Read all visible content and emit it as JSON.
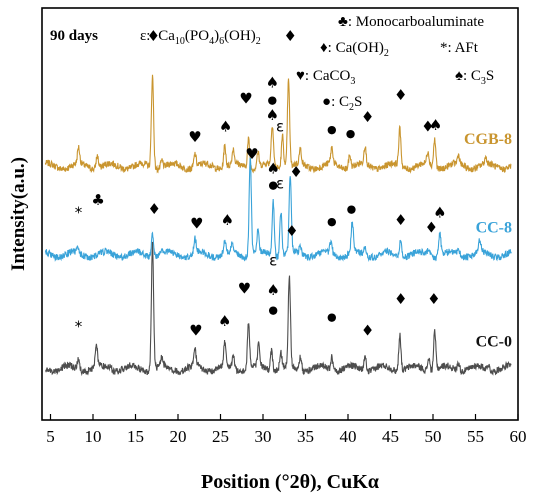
{
  "chart_data": {
    "type": "line",
    "title": "90 days",
    "xlabel": "Position (°2θ), CuKα",
    "ylabel": "Intensity(a.u.)",
    "xlim": [
      4,
      60
    ],
    "x_ticks": [
      "5",
      "10",
      "15",
      "20",
      "25",
      "30",
      "35",
      "40",
      "45",
      "50",
      "55",
      "60"
    ],
    "y_ticks_shown": false,
    "grid": false,
    "legend_placement": "top",
    "legend": {
      "epsilon": {
        "symbol": "ε:",
        "formula_parts": [
          "Ca",
          "10",
          "(PO",
          "4",
          ")",
          "6",
          "(OH)",
          "2"
        ]
      },
      "monocarboaluminate": {
        "symbol": "♣",
        "label": ": Monocarboaluminate"
      },
      "caoh2": {
        "symbol": "♦",
        "label_parts": [
          ": Ca(OH)",
          "2"
        ]
      },
      "aft": {
        "symbol": "*",
        "label": ": AFt"
      },
      "caco3": {
        "symbol": "♥",
        "label_parts": [
          ": CaCO",
          "3"
        ]
      },
      "c3s": {
        "symbol": "♠",
        "label_parts": [
          ": C",
          "3",
          "S"
        ]
      },
      "c2s": {
        "symbol": "●",
        "label_parts": [
          ": C",
          "2",
          "S"
        ]
      }
    },
    "series": [
      {
        "name": "CGB-8",
        "color": "#c9952f",
        "baseline": 1.25,
        "noise": 0.09,
        "peaks": [
          [
            8.3,
            0.22
          ],
          [
            10.5,
            0.18
          ],
          [
            17.0,
            1.25
          ],
          [
            18.1,
            0.1
          ],
          [
            22.0,
            0.18
          ],
          [
            25.5,
            0.3
          ],
          [
            26.5,
            0.2
          ],
          [
            28.3,
            0.4
          ],
          [
            29.4,
            0.2
          ],
          [
            31.1,
            0.55
          ],
          [
            32.3,
            0.45
          ],
          [
            33.0,
            1.18
          ],
          [
            34.4,
            0.2
          ],
          [
            38.1,
            0.22
          ],
          [
            40.2,
            0.18
          ],
          [
            42.0,
            0.25
          ],
          [
            46.1,
            0.5
          ],
          [
            49.4,
            0.18
          ],
          [
            50.2,
            0.38
          ],
          [
            53.0,
            0.12
          ],
          [
            56.2,
            0.08
          ]
        ]
      },
      {
        "name": "CC-8",
        "color": "#3aa3d9",
        "baseline": 0.05,
        "noise": 0.09,
        "peaks": [
          [
            8.2,
            0.05
          ],
          [
            17.0,
            0.33
          ],
          [
            18.1,
            0.05
          ],
          [
            22.0,
            0.2
          ],
          [
            25.5,
            0.18
          ],
          [
            26.4,
            0.12
          ],
          [
            28.5,
            1.35
          ],
          [
            29.4,
            0.3
          ],
          [
            31.2,
            0.75
          ],
          [
            32.1,
            0.62
          ],
          [
            33.2,
            1.05
          ],
          [
            34.4,
            0.1
          ],
          [
            38.0,
            0.18
          ],
          [
            40.5,
            0.42
          ],
          [
            42.0,
            0.12
          ],
          [
            46.2,
            0.22
          ],
          [
            49.5,
            0.1
          ],
          [
            50.8,
            0.32
          ],
          [
            53.0,
            0.08
          ],
          [
            55.5,
            0.16
          ]
        ]
      },
      {
        "name": "CC-0",
        "color": "#4d4d4d",
        "baseline": -1.5,
        "noise": 0.09,
        "peaks": [
          [
            8.3,
            0.16
          ],
          [
            10.4,
            0.3
          ],
          [
            12.0,
            0.05
          ],
          [
            17.0,
            1.7
          ],
          [
            18.1,
            0.12
          ],
          [
            22.0,
            0.22
          ],
          [
            25.5,
            0.32
          ],
          [
            26.5,
            0.18
          ],
          [
            28.3,
            0.62
          ],
          [
            29.5,
            0.3
          ],
          [
            31.0,
            0.28
          ],
          [
            32.1,
            0.22
          ],
          [
            33.1,
            1.22
          ],
          [
            34.4,
            0.2
          ],
          [
            38.1,
            0.18
          ],
          [
            42.0,
            0.2
          ],
          [
            46.1,
            0.5
          ],
          [
            49.5,
            0.18
          ],
          [
            50.2,
            0.52
          ],
          [
            53.0,
            0.12
          ],
          [
            56.5,
            0.08
          ]
        ]
      }
    ],
    "annotations": [
      {
        "text": "*",
        "x": 8.3,
        "y": 0.55
      },
      {
        "text": "♣",
        "x": 10.6,
        "y": 0.72
      },
      {
        "text": "♦",
        "x": 17.1,
        "y": 2.95
      },
      {
        "text": "♥",
        "x": 22.0,
        "y": 1.58
      },
      {
        "text": "♠",
        "x": 25.6,
        "y": 1.72
      },
      {
        "text": "♥",
        "x": 28.0,
        "y": 2.1
      },
      {
        "text": "♠",
        "x": 31.1,
        "y": 2.32
      },
      {
        "text": "●",
        "x": 31.1,
        "y": 2.1
      },
      {
        "text": "♠",
        "x": 31.1,
        "y": 1.88
      },
      {
        "text": "ε",
        "x": 32.0,
        "y": 1.72
      },
      {
        "text": "♦",
        "x": 33.2,
        "y": 2.95
      },
      {
        "text": "●",
        "x": 38.1,
        "y": 1.7
      },
      {
        "text": "●",
        "x": 40.3,
        "y": 1.65
      },
      {
        "text": "♦",
        "x": 42.3,
        "y": 1.85
      },
      {
        "text": "♦",
        "x": 46.2,
        "y": 2.15
      },
      {
        "text": "♦",
        "x": 49.4,
        "y": 1.72
      },
      {
        "text": "♠",
        "x": 50.3,
        "y": 1.74
      },
      {
        "text": "♥",
        "x": 28.7,
        "y": 1.35
      },
      {
        "text": "♠",
        "x": 31.2,
        "y": 1.15
      },
      {
        "text": "●",
        "x": 31.2,
        "y": 0.95
      },
      {
        "text": "ε",
        "x": 32.0,
        "y": 0.95
      },
      {
        "text": "♦",
        "x": 33.9,
        "y": 1.1
      },
      {
        "text": "♦",
        "x": 17.2,
        "y": 0.6
      },
      {
        "text": "♥",
        "x": 22.2,
        "y": 0.4
      },
      {
        "text": "♠",
        "x": 25.8,
        "y": 0.45
      },
      {
        "text": "●",
        "x": 38.1,
        "y": 0.45
      },
      {
        "text": "●",
        "x": 40.4,
        "y": 0.62
      },
      {
        "text": "♦",
        "x": 46.2,
        "y": 0.45
      },
      {
        "text": "♦",
        "x": 49.8,
        "y": 0.35
      },
      {
        "text": "♠",
        "x": 50.8,
        "y": 0.55
      },
      {
        "text": "*",
        "x": 8.3,
        "y": -1.0
      },
      {
        "text": "♥",
        "x": 22.1,
        "y": -1.05
      },
      {
        "text": "♠",
        "x": 25.5,
        "y": -0.92
      },
      {
        "text": "♥",
        "x": 27.8,
        "y": -0.48
      },
      {
        "text": "ε",
        "x": 31.2,
        "y": -0.1
      },
      {
        "text": "♠",
        "x": 31.2,
        "y": -0.5
      },
      {
        "text": "●",
        "x": 31.2,
        "y": -0.75
      },
      {
        "text": "♦",
        "x": 33.4,
        "y": 0.3
      },
      {
        "text": "●",
        "x": 38.1,
        "y": -0.85
      },
      {
        "text": "♦",
        "x": 42.3,
        "y": -1.05
      },
      {
        "text": "♦",
        "x": 46.2,
        "y": -0.62
      },
      {
        "text": "♦",
        "x": 50.1,
        "y": -0.62
      }
    ]
  }
}
